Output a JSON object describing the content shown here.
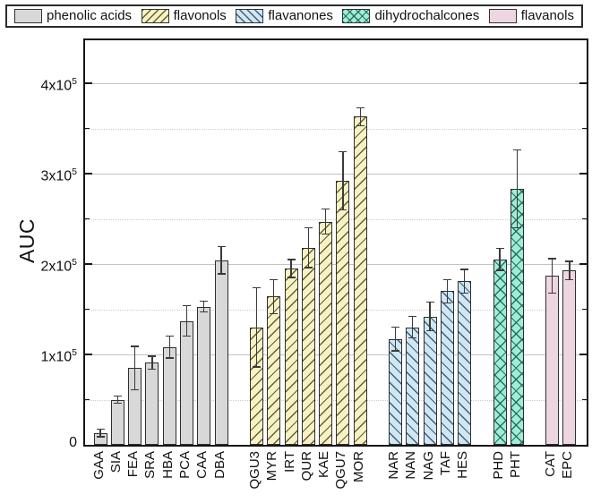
{
  "figure": {
    "background": "#ffffff"
  },
  "chart_data": {
    "type": "bar",
    "title": "",
    "xlabel": "",
    "ylabel": "AUC",
    "ylim": [
      0,
      447500
    ],
    "grid": "horizontal: major solid, minor dotted",
    "legend_position": "top",
    "y_major_ticks": [
      {
        "value": 0,
        "label": "0"
      },
      {
        "value": 100000,
        "label": "1x10^5"
      },
      {
        "value": 200000,
        "label": "2x10^5"
      },
      {
        "value": 300000,
        "label": "3x10^5"
      },
      {
        "value": 400000,
        "label": "4x10^5"
      }
    ],
    "y_minor_step": 50000,
    "series": [
      {
        "name": "phenolic acids",
        "fill": "#d8d8d8",
        "hatch": "none",
        "bars": [
          {
            "label": "GAA",
            "value": 13000,
            "error": 4000
          },
          {
            "label": "SIA",
            "value": 50000,
            "error": 4000
          },
          {
            "label": "FEA",
            "value": 85000,
            "error": 24000
          },
          {
            "label": "SRA",
            "value": 91000,
            "error": 7000
          },
          {
            "label": "HBA",
            "value": 108000,
            "error": 12000
          },
          {
            "label": "PCA",
            "value": 137000,
            "error": 17000
          },
          {
            "label": "CAA",
            "value": 153000,
            "error": 6000
          },
          {
            "label": "DBA",
            "value": 204000,
            "error": 15000
          }
        ]
      },
      {
        "name": "flavonols",
        "fill": "#f6f2c6",
        "hatch": "forward",
        "bars": [
          {
            "label": "QGU3",
            "value": 130000,
            "error": 44000
          },
          {
            "label": "MYR",
            "value": 164000,
            "error": 19000
          },
          {
            "label": "IRT",
            "value": 195000,
            "error": 10000
          },
          {
            "label": "QUR",
            "value": 218000,
            "error": 22000
          },
          {
            "label": "KAE",
            "value": 247000,
            "error": 14000
          },
          {
            "label": "QGU7",
            "value": 292000,
            "error": 32000
          },
          {
            "label": "MOR",
            "value": 363000,
            "error": 10000
          }
        ]
      },
      {
        "name": "flavanones",
        "fill": "#cfe6f3",
        "hatch": "backward",
        "bars": [
          {
            "label": "NAR",
            "value": 117000,
            "error": 13000
          },
          {
            "label": "NAN",
            "value": 130000,
            "error": 12000
          },
          {
            "label": "NAG",
            "value": 142000,
            "error": 16000
          },
          {
            "label": "TAF",
            "value": 170000,
            "error": 13000
          },
          {
            "label": "HES",
            "value": 181000,
            "error": 13000
          }
        ]
      },
      {
        "name": "dihydrochalcones",
        "fill": "#a2ecd6",
        "hatch": "cross",
        "bars": [
          {
            "label": "PHD",
            "value": 205000,
            "error": 12000
          },
          {
            "label": "PHT",
            "value": 283000,
            "error": 43000
          }
        ]
      },
      {
        "name": "flavanols",
        "fill": "#eed5e2",
        "hatch": "none",
        "bars": [
          {
            "label": "CAT",
            "value": 187000,
            "error": 19000
          },
          {
            "label": "EPC",
            "value": 193000,
            "error": 10000
          }
        ]
      }
    ]
  }
}
